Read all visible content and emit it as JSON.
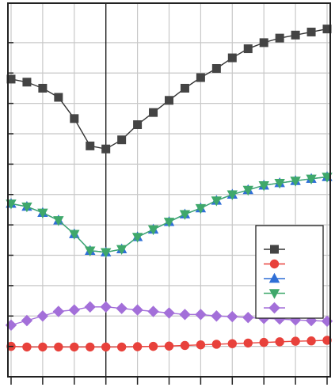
{
  "chart_data": {
    "type": "line",
    "title": "",
    "xlabel": "",
    "ylabel": "",
    "x": [
      1,
      2,
      3,
      4,
      5,
      6,
      7,
      8,
      9,
      10,
      11,
      12,
      13,
      14,
      15,
      16,
      17,
      18,
      19,
      20,
      21
    ],
    "xlim": [
      0.8,
      21.2
    ],
    "ylim": [
      0,
      12.3
    ],
    "grid": true,
    "grid_x_every": 2,
    "vertical_reference_line_x": 7,
    "legend_placement": "right",
    "legend_entries": [
      "",
      "",
      "",
      "",
      ""
    ],
    "series": [
      {
        "marker": "square",
        "color": "#444444",
        "line_color": "#333333",
        "values": [
          9.8,
          9.7,
          9.5,
          9.2,
          8.5,
          7.6,
          7.5,
          7.8,
          8.3,
          8.7,
          9.1,
          9.5,
          9.85,
          10.15,
          10.5,
          10.8,
          11.0,
          11.15,
          11.25,
          11.35,
          11.45
        ]
      },
      {
        "marker": "circle",
        "color": "#e8413b",
        "line_color": "#e8413b",
        "values": [
          1.0,
          0.98,
          0.98,
          0.98,
          0.98,
          0.98,
          0.98,
          0.98,
          0.99,
          1.0,
          1.01,
          1.03,
          1.05,
          1.07,
          1.09,
          1.11,
          1.13,
          1.15,
          1.17,
          1.18,
          1.2
        ]
      },
      {
        "marker": "triangle-up",
        "color": "#2f6fd6",
        "line_color": "#2f6fd6",
        "values": [
          5.7,
          5.6,
          5.4,
          5.15,
          4.7,
          4.15,
          4.1,
          4.2,
          4.6,
          4.85,
          5.1,
          5.35,
          5.55,
          5.8,
          6.0,
          6.15,
          6.3,
          6.38,
          6.45,
          6.52,
          6.58
        ]
      },
      {
        "marker": "triangle-down",
        "color": "#3fa86b",
        "line_color": "#3fa86b",
        "values": [
          5.7,
          5.6,
          5.4,
          5.15,
          4.7,
          4.15,
          4.1,
          4.2,
          4.6,
          4.85,
          5.1,
          5.35,
          5.55,
          5.8,
          6.0,
          6.15,
          6.3,
          6.38,
          6.45,
          6.52,
          6.58
        ]
      },
      {
        "marker": "diamond",
        "color": "#a36fd9",
        "line_color": "#a36fd9",
        "values": [
          1.7,
          1.85,
          2.0,
          2.15,
          2.2,
          2.3,
          2.3,
          2.25,
          2.2,
          2.15,
          2.1,
          2.05,
          2.05,
          2.0,
          1.98,
          1.95,
          1.92,
          1.9,
          1.87,
          1.85,
          1.83
        ]
      }
    ]
  }
}
